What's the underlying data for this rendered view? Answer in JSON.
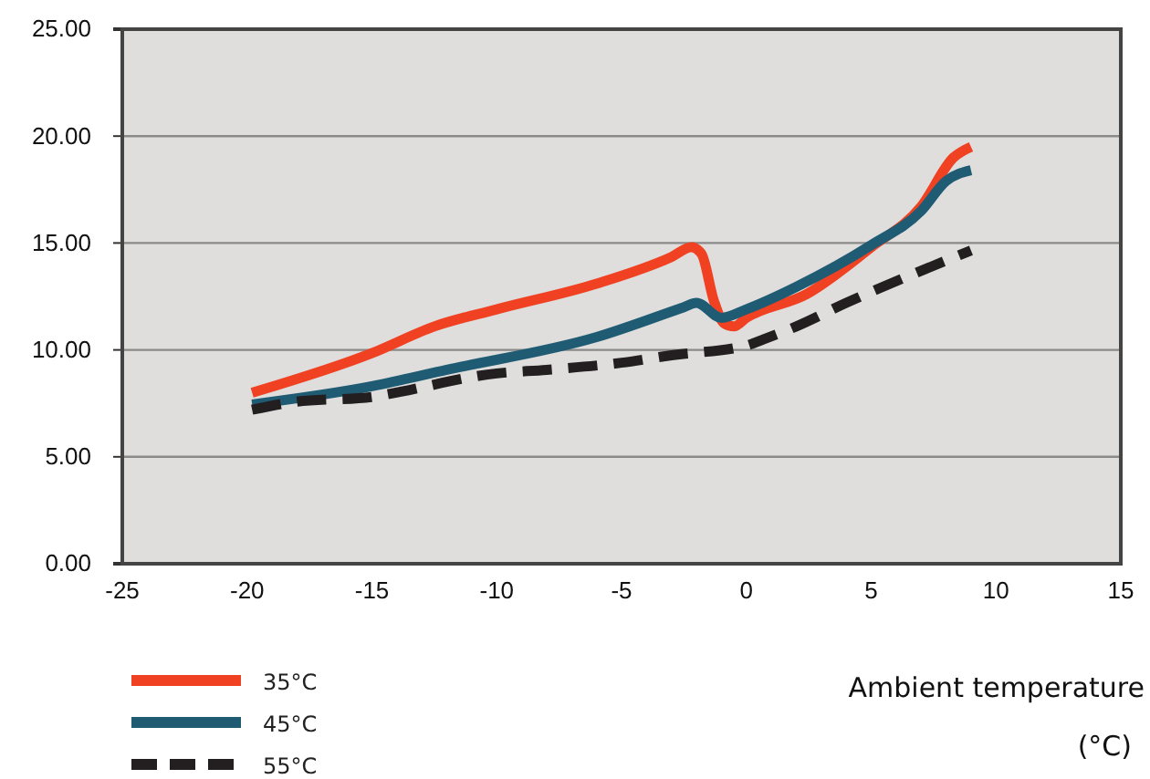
{
  "chart_data": {
    "type": "line",
    "xlabel": "Ambient temperature (°C)",
    "xlim": [
      -25,
      15
    ],
    "xticks": [
      -25,
      -20,
      -15,
      -10,
      -5,
      0,
      5,
      10,
      15
    ],
    "ylim": [
      0,
      25
    ],
    "yticks": [
      {
        "value": 0,
        "label": "0.00"
      },
      {
        "value": 5,
        "label": "5.00"
      },
      {
        "value": 10,
        "label": "10.00"
      },
      {
        "value": 15,
        "label": "15.00"
      },
      {
        "value": 20,
        "label": "20.00"
      },
      {
        "value": 25,
        "label": "25.00"
      }
    ],
    "grid": "y",
    "legend": "bottom left",
    "marker": "none",
    "series": [
      {
        "name": "35°C",
        "color": "#f04223",
        "line_style": "solid",
        "x": [
          -19.8,
          -15,
          -12.5,
          -10,
          -6,
          -3,
          -2.2,
          -1.8,
          -1.3,
          -0.9,
          -0.5,
          0,
          2.4,
          5,
          7,
          8.3,
          9
        ],
        "values": [
          8.0,
          9.85,
          11.1,
          11.9,
          13.1,
          14.35,
          14.8,
          14.5,
          12.3,
          11.25,
          11.1,
          11.5,
          12.6,
          14.8,
          16.7,
          19.0,
          19.5
        ]
      },
      {
        "name": "45°C",
        "color": "#1f5c73",
        "line_style": "solid",
        "x": [
          -19.8,
          -15,
          -12,
          -6,
          -2.5,
          -2,
          -1,
          0,
          2,
          5,
          7,
          8,
          9
        ],
        "values": [
          7.45,
          8.3,
          9.07,
          10.6,
          12.0,
          12.2,
          11.5,
          11.9,
          12.95,
          14.9,
          16.5,
          17.9,
          18.4
        ]
      },
      {
        "name": "55°C",
        "color": "#231f20",
        "line_style": "dashed",
        "x": [
          -19.8,
          -18,
          -15,
          -14.5,
          -10,
          -8,
          -5,
          -3,
          0,
          0.7,
          2,
          4,
          7,
          9
        ],
        "values": [
          7.2,
          7.58,
          7.8,
          7.9,
          8.9,
          9.07,
          9.4,
          9.75,
          10.2,
          10.5,
          11.1,
          12.2,
          13.7,
          14.65
        ]
      }
    ]
  }
}
